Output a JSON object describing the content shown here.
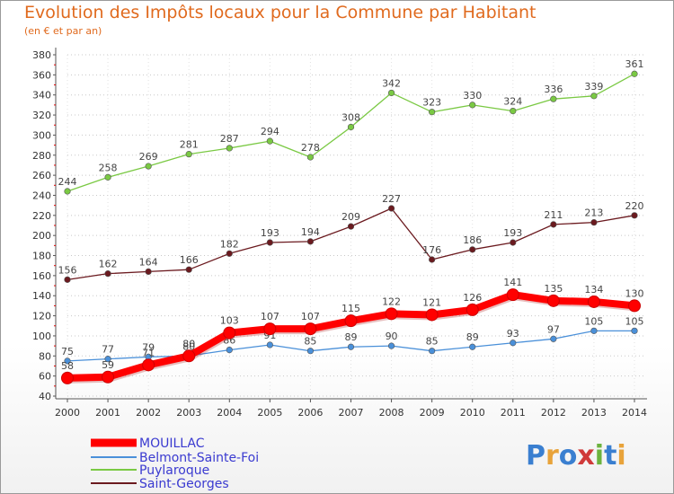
{
  "header": {
    "title": "Evolution des Impôts locaux pour la Commune par Habitant",
    "subtitle": "(en € et par an)"
  },
  "logo": {
    "text": "Proxiti"
  },
  "chart_data": {
    "type": "line",
    "title": "Evolution des Impôts locaux pour la Commune par Habitant",
    "subtitle": "(en € et par an)",
    "x": [
      2000,
      2001,
      2002,
      2003,
      2004,
      2005,
      2006,
      2007,
      2008,
      2009,
      2010,
      2011,
      2012,
      2013,
      2014
    ],
    "ylim": [
      40,
      380
    ],
    "yticks": [
      40,
      60,
      80,
      100,
      120,
      140,
      160,
      180,
      200,
      220,
      240,
      260,
      280,
      300,
      320,
      340,
      360,
      380
    ],
    "grid": true,
    "legend_position": "bottom-left",
    "series": [
      {
        "name": "MOUILLAC",
        "color": "#ff0000",
        "values": [
          58,
          59,
          71,
          80,
          103,
          107,
          107,
          115,
          122,
          121,
          126,
          141,
          135,
          134,
          130
        ]
      },
      {
        "name": "Belmont-Sainte-Foi",
        "color": "#4a90d9",
        "values": [
          75,
          77,
          79,
          80,
          86,
          91,
          85,
          89,
          90,
          85,
          89,
          93,
          97,
          105,
          105
        ]
      },
      {
        "name": "Puylaroque",
        "color": "#7ac943",
        "values": [
          244,
          258,
          269,
          281,
          287,
          294,
          278,
          308,
          342,
          323,
          330,
          324,
          336,
          339,
          361
        ]
      },
      {
        "name": "Saint-Georges",
        "color": "#6b1a1f",
        "values": [
          156,
          162,
          164,
          166,
          182,
          193,
          194,
          209,
          227,
          176,
          186,
          193,
          211,
          213,
          220
        ]
      }
    ]
  }
}
